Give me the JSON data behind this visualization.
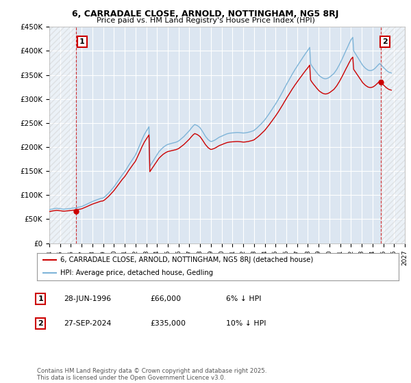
{
  "title1": "6, CARRADALE CLOSE, ARNOLD, NOTTINGHAM, NG5 8RJ",
  "title2": "Price paid vs. HM Land Registry's House Price Index (HPI)",
  "ylim": [
    0,
    450000
  ],
  "yticks": [
    0,
    50000,
    100000,
    150000,
    200000,
    250000,
    300000,
    350000,
    400000,
    450000
  ],
  "ytick_labels": [
    "£0",
    "£50K",
    "£100K",
    "£150K",
    "£200K",
    "£250K",
    "£300K",
    "£350K",
    "£400K",
    "£450K"
  ],
  "hpi_color": "#7eb4d8",
  "price_color": "#cc0000",
  "background_color": "#ffffff",
  "plot_bg_color": "#dce6f1",
  "grid_color": "#ffffff",
  "legend_label_price": "6, CARRADALE CLOSE, ARNOLD, NOTTINGHAM, NG5 8RJ (detached house)",
  "legend_label_hpi": "HPI: Average price, detached house, Gedling",
  "footnote": "Contains HM Land Registry data © Crown copyright and database right 2025.\nThis data is licensed under the Open Government Licence v3.0.",
  "sale1_date_num": 1996.5,
  "sale1_price": 66000,
  "sale1_label": "1",
  "sale2_date_num": 2024.75,
  "sale2_price": 335000,
  "sale2_label": "2",
  "xlim_min": 1994.0,
  "xlim_max": 2027.0,
  "table_rows": [
    {
      "num": "1",
      "date": "28-JUN-1996",
      "price": "£66,000",
      "note": "6% ↓ HPI"
    },
    {
      "num": "2",
      "date": "27-SEP-2024",
      "price": "£335,000",
      "note": "10% ↓ HPI"
    }
  ],
  "hpi_data": [
    [
      1994.0,
      69900
    ],
    [
      1994.08,
      70200
    ],
    [
      1994.17,
      70600
    ],
    [
      1994.25,
      71000
    ],
    [
      1994.33,
      71300
    ],
    [
      1994.42,
      71700
    ],
    [
      1994.5,
      72000
    ],
    [
      1994.58,
      72400
    ],
    [
      1994.67,
      72700
    ],
    [
      1994.75,
      72500
    ],
    [
      1994.83,
      72200
    ],
    [
      1994.92,
      72000
    ],
    [
      1995.0,
      71800
    ],
    [
      1995.08,
      71500
    ],
    [
      1995.17,
      71300
    ],
    [
      1995.25,
      71000
    ],
    [
      1995.33,
      70800
    ],
    [
      1995.42,
      70900
    ],
    [
      1995.5,
      71100
    ],
    [
      1995.58,
      71300
    ],
    [
      1995.67,
      71500
    ],
    [
      1995.75,
      71700
    ],
    [
      1995.83,
      71900
    ],
    [
      1995.92,
      72100
    ],
    [
      1996.0,
      72300
    ],
    [
      1996.08,
      72600
    ],
    [
      1996.17,
      72800
    ],
    [
      1996.25,
      73100
    ],
    [
      1996.33,
      73400
    ],
    [
      1996.42,
      73700
    ],
    [
      1996.5,
      70300
    ],
    [
      1996.58,
      74300
    ],
    [
      1996.67,
      74600
    ],
    [
      1996.75,
      75000
    ],
    [
      1996.83,
      75400
    ],
    [
      1996.92,
      75800
    ],
    [
      1997.0,
      76200
    ],
    [
      1997.08,
      77000
    ],
    [
      1997.17,
      77800
    ],
    [
      1997.25,
      78700
    ],
    [
      1997.33,
      79600
    ],
    [
      1997.42,
      80500
    ],
    [
      1997.5,
      81400
    ],
    [
      1997.58,
      82300
    ],
    [
      1997.67,
      83200
    ],
    [
      1997.75,
      84100
    ],
    [
      1997.83,
      85000
    ],
    [
      1997.92,
      85900
    ],
    [
      1998.0,
      86800
    ],
    [
      1998.08,
      87500
    ],
    [
      1998.17,
      88200
    ],
    [
      1998.25,
      88900
    ],
    [
      1998.33,
      89600
    ],
    [
      1998.42,
      90300
    ],
    [
      1998.5,
      91000
    ],
    [
      1998.58,
      91700
    ],
    [
      1998.67,
      92400
    ],
    [
      1998.75,
      93100
    ],
    [
      1998.83,
      93400
    ],
    [
      1998.92,
      93700
    ],
    [
      1999.0,
      94200
    ],
    [
      1999.08,
      95500
    ],
    [
      1999.17,
      97000
    ],
    [
      1999.25,
      98800
    ],
    [
      1999.33,
      100500
    ],
    [
      1999.42,
      102300
    ],
    [
      1999.5,
      104000
    ],
    [
      1999.58,
      106200
    ],
    [
      1999.67,
      108400
    ],
    [
      1999.75,
      110600
    ],
    [
      1999.83,
      112800
    ],
    [
      1999.92,
      115000
    ],
    [
      2000.0,
      117200
    ],
    [
      2000.08,
      119800
    ],
    [
      2000.17,
      122500
    ],
    [
      2000.25,
      125200
    ],
    [
      2000.33,
      128000
    ],
    [
      2000.42,
      130800
    ],
    [
      2000.5,
      133600
    ],
    [
      2000.58,
      136300
    ],
    [
      2000.67,
      139000
    ],
    [
      2000.75,
      141500
    ],
    [
      2000.83,
      143900
    ],
    [
      2000.92,
      146200
    ],
    [
      2001.0,
      148500
    ],
    [
      2001.08,
      151500
    ],
    [
      2001.17,
      154500
    ],
    [
      2001.25,
      157600
    ],
    [
      2001.33,
      160700
    ],
    [
      2001.42,
      163800
    ],
    [
      2001.5,
      166800
    ],
    [
      2001.58,
      169500
    ],
    [
      2001.67,
      172200
    ],
    [
      2001.75,
      175000
    ],
    [
      2001.83,
      177800
    ],
    [
      2001.92,
      180600
    ],
    [
      2002.0,
      183400
    ],
    [
      2002.08,
      187500
    ],
    [
      2002.17,
      191800
    ],
    [
      2002.25,
      196200
    ],
    [
      2002.33,
      200700
    ],
    [
      2002.42,
      205300
    ],
    [
      2002.5,
      210000
    ],
    [
      2002.58,
      214500
    ],
    [
      2002.67,
      218800
    ],
    [
      2002.75,
      222800
    ],
    [
      2002.83,
      226500
    ],
    [
      2002.92,
      229900
    ],
    [
      2003.0,
      233200
    ],
    [
      2003.08,
      236200
    ],
    [
      2003.17,
      239200
    ],
    [
      2003.25,
      242200
    ],
    [
      2003.33,
      160000
    ],
    [
      2003.42,
      163000
    ],
    [
      2003.5,
      166000
    ],
    [
      2003.58,
      169000
    ],
    [
      2003.67,
      172000
    ],
    [
      2003.75,
      175000
    ],
    [
      2003.83,
      178000
    ],
    [
      2003.92,
      181000
    ],
    [
      2004.0,
      184000
    ],
    [
      2004.08,
      187000
    ],
    [
      2004.17,
      190000
    ],
    [
      2004.25,
      192000
    ],
    [
      2004.33,
      194000
    ],
    [
      2004.42,
      196000
    ],
    [
      2004.5,
      198000
    ],
    [
      2004.58,
      199500
    ],
    [
      2004.67,
      201000
    ],
    [
      2004.75,
      202500
    ],
    [
      2004.83,
      203500
    ],
    [
      2004.92,
      204500
    ],
    [
      2005.0,
      205500
    ],
    [
      2005.08,
      206000
    ],
    [
      2005.17,
      206500
    ],
    [
      2005.25,
      207000
    ],
    [
      2005.33,
      207500
    ],
    [
      2005.42,
      208000
    ],
    [
      2005.5,
      208500
    ],
    [
      2005.58,
      209000
    ],
    [
      2005.67,
      209500
    ],
    [
      2005.75,
      210000
    ],
    [
      2005.83,
      210800
    ],
    [
      2005.92,
      211600
    ],
    [
      2006.0,
      212500
    ],
    [
      2006.08,
      214000
    ],
    [
      2006.17,
      215500
    ],
    [
      2006.25,
      217100
    ],
    [
      2006.33,
      218700
    ],
    [
      2006.42,
      220300
    ],
    [
      2006.5,
      222000
    ],
    [
      2006.58,
      224000
    ],
    [
      2006.67,
      226000
    ],
    [
      2006.75,
      228000
    ],
    [
      2006.83,
      230000
    ],
    [
      2006.92,
      232000
    ],
    [
      2007.0,
      234000
    ],
    [
      2007.08,
      236500
    ],
    [
      2007.17,
      239000
    ],
    [
      2007.25,
      241200
    ],
    [
      2007.33,
      243400
    ],
    [
      2007.42,
      245100
    ],
    [
      2007.5,
      246800
    ],
    [
      2007.58,
      246000
    ],
    [
      2007.67,
      245200
    ],
    [
      2007.75,
      244400
    ],
    [
      2007.83,
      243000
    ],
    [
      2007.92,
      241500
    ],
    [
      2008.0,
      239800
    ],
    [
      2008.08,
      237000
    ],
    [
      2008.17,
      234200
    ],
    [
      2008.25,
      231300
    ],
    [
      2008.33,
      228300
    ],
    [
      2008.42,
      225200
    ],
    [
      2008.5,
      222000
    ],
    [
      2008.58,
      219800
    ],
    [
      2008.67,
      217500
    ],
    [
      2008.75,
      215200
    ],
    [
      2008.83,
      213800
    ],
    [
      2008.92,
      212400
    ],
    [
      2009.0,
      211500
    ],
    [
      2009.08,
      211800
    ],
    [
      2009.17,
      212500
    ],
    [
      2009.25,
      213300
    ],
    [
      2009.33,
      214100
    ],
    [
      2009.42,
      215200
    ],
    [
      2009.5,
      216400
    ],
    [
      2009.58,
      217600
    ],
    [
      2009.67,
      218800
    ],
    [
      2009.75,
      220100
    ],
    [
      2009.83,
      221000
    ],
    [
      2009.92,
      221800
    ],
    [
      2010.0,
      222600
    ],
    [
      2010.08,
      223500
    ],
    [
      2010.17,
      224400
    ],
    [
      2010.25,
      225200
    ],
    [
      2010.33,
      226100
    ],
    [
      2010.42,
      226800
    ],
    [
      2010.5,
      227500
    ],
    [
      2010.58,
      228000
    ],
    [
      2010.67,
      228400
    ],
    [
      2010.75,
      228800
    ],
    [
      2010.83,
      229000
    ],
    [
      2010.92,
      229200
    ],
    [
      2011.0,
      229400
    ],
    [
      2011.08,
      229600
    ],
    [
      2011.17,
      229800
    ],
    [
      2011.25,
      230000
    ],
    [
      2011.33,
      230100
    ],
    [
      2011.42,
      230200
    ],
    [
      2011.5,
      230200
    ],
    [
      2011.58,
      230100
    ],
    [
      2011.67,
      230000
    ],
    [
      2011.75,
      229800
    ],
    [
      2011.83,
      229600
    ],
    [
      2011.92,
      229300
    ],
    [
      2012.0,
      229100
    ],
    [
      2012.08,
      229200
    ],
    [
      2012.17,
      229400
    ],
    [
      2012.25,
      229700
    ],
    [
      2012.33,
      230000
    ],
    [
      2012.42,
      230400
    ],
    [
      2012.5,
      230800
    ],
    [
      2012.58,
      231300
    ],
    [
      2012.67,
      231800
    ],
    [
      2012.75,
      232400
    ],
    [
      2012.83,
      233000
    ],
    [
      2012.92,
      233700
    ],
    [
      2013.0,
      234500
    ],
    [
      2013.08,
      236000
    ],
    [
      2013.17,
      237600
    ],
    [
      2013.25,
      239200
    ],
    [
      2013.33,
      240900
    ],
    [
      2013.42,
      242700
    ],
    [
      2013.5,
      244500
    ],
    [
      2013.58,
      246400
    ],
    [
      2013.67,
      248300
    ],
    [
      2013.75,
      250300
    ],
    [
      2013.83,
      252300
    ],
    [
      2013.92,
      254400
    ],
    [
      2014.0,
      256500
    ],
    [
      2014.08,
      259000
    ],
    [
      2014.17,
      261600
    ],
    [
      2014.25,
      264200
    ],
    [
      2014.33,
      266900
    ],
    [
      2014.42,
      269700
    ],
    [
      2014.5,
      272500
    ],
    [
      2014.58,
      275300
    ],
    [
      2014.67,
      278100
    ],
    [
      2014.75,
      281000
    ],
    [
      2014.83,
      283800
    ],
    [
      2014.92,
      286600
    ],
    [
      2015.0,
      289500
    ],
    [
      2015.08,
      292500
    ],
    [
      2015.17,
      295600
    ],
    [
      2015.25,
      298700
    ],
    [
      2015.33,
      301900
    ],
    [
      2015.42,
      305200
    ],
    [
      2015.5,
      308600
    ],
    [
      2015.58,
      312100
    ],
    [
      2015.67,
      315600
    ],
    [
      2015.75,
      319100
    ],
    [
      2015.83,
      322600
    ],
    [
      2015.92,
      326100
    ],
    [
      2016.0,
      329700
    ],
    [
      2016.08,
      333000
    ],
    [
      2016.17,
      336300
    ],
    [
      2016.25,
      339600
    ],
    [
      2016.33,
      343000
    ],
    [
      2016.42,
      346300
    ],
    [
      2016.5,
      349600
    ],
    [
      2016.58,
      352800
    ],
    [
      2016.67,
      356000
    ],
    [
      2016.75,
      359200
    ],
    [
      2016.83,
      362100
    ],
    [
      2016.92,
      365000
    ],
    [
      2017.0,
      368000
    ],
    [
      2017.08,
      370800
    ],
    [
      2017.17,
      373700
    ],
    [
      2017.25,
      376500
    ],
    [
      2017.33,
      379400
    ],
    [
      2017.42,
      382200
    ],
    [
      2017.5,
      385100
    ],
    [
      2017.58,
      387900
    ],
    [
      2017.67,
      390700
    ],
    [
      2017.75,
      393500
    ],
    [
      2017.83,
      396100
    ],
    [
      2017.92,
      398700
    ],
    [
      2018.0,
      401300
    ],
    [
      2018.08,
      404200
    ],
    [
      2018.17,
      407200
    ],
    [
      2018.25,
      373500
    ],
    [
      2018.33,
      370000
    ],
    [
      2018.42,
      367000
    ],
    [
      2018.5,
      364500
    ],
    [
      2018.58,
      362000
    ],
    [
      2018.67,
      359500
    ],
    [
      2018.75,
      357000
    ],
    [
      2018.83,
      354500
    ],
    [
      2018.92,
      352000
    ],
    [
      2019.0,
      350000
    ],
    [
      2019.08,
      348000
    ],
    [
      2019.17,
      346500
    ],
    [
      2019.25,
      345000
    ],
    [
      2019.33,
      344000
    ],
    [
      2019.42,
      343000
    ],
    [
      2019.5,
      342500
    ],
    [
      2019.58,
      342000
    ],
    [
      2019.67,
      342000
    ],
    [
      2019.75,
      342500
    ],
    [
      2019.83,
      343000
    ],
    [
      2019.92,
      344000
    ],
    [
      2020.0,
      345000
    ],
    [
      2020.08,
      346500
    ],
    [
      2020.17,
      348000
    ],
    [
      2020.25,
      349500
    ],
    [
      2020.33,
      351000
    ],
    [
      2020.42,
      353000
    ],
    [
      2020.5,
      355500
    ],
    [
      2020.58,
      358000
    ],
    [
      2020.67,
      361000
    ],
    [
      2020.75,
      364000
    ],
    [
      2020.83,
      367500
    ],
    [
      2020.92,
      371000
    ],
    [
      2021.0,
      374500
    ],
    [
      2021.08,
      378500
    ],
    [
      2021.17,
      382500
    ],
    [
      2021.25,
      386500
    ],
    [
      2021.33,
      390600
    ],
    [
      2021.42,
      394700
    ],
    [
      2021.5,
      398800
    ],
    [
      2021.58,
      402900
    ],
    [
      2021.67,
      407000
    ],
    [
      2021.75,
      411100
    ],
    [
      2021.83,
      415100
    ],
    [
      2021.92,
      419000
    ],
    [
      2022.0,
      423000
    ],
    [
      2022.08,
      425500
    ],
    [
      2022.17,
      428000
    ],
    [
      2022.25,
      400000
    ],
    [
      2022.33,
      397000
    ],
    [
      2022.42,
      394000
    ],
    [
      2022.5,
      391000
    ],
    [
      2022.58,
      388000
    ],
    [
      2022.67,
      385000
    ],
    [
      2022.75,
      382000
    ],
    [
      2022.83,
      379000
    ],
    [
      2022.92,
      376000
    ],
    [
      2023.0,
      373000
    ],
    [
      2023.08,
      370000
    ],
    [
      2023.17,
      368000
    ],
    [
      2023.25,
      366000
    ],
    [
      2023.33,
      364000
    ],
    [
      2023.42,
      362500
    ],
    [
      2023.5,
      361000
    ],
    [
      2023.58,
      360000
    ],
    [
      2023.67,
      359500
    ],
    [
      2023.75,
      359000
    ],
    [
      2023.83,
      359000
    ],
    [
      2023.92,
      359500
    ],
    [
      2024.0,
      360000
    ],
    [
      2024.08,
      361000
    ],
    [
      2024.17,
      362500
    ],
    [
      2024.25,
      364000
    ],
    [
      2024.33,
      366000
    ],
    [
      2024.42,
      368000
    ],
    [
      2024.5,
      370000
    ],
    [
      2024.58,
      372000
    ],
    [
      2024.67,
      373500
    ],
    [
      2024.75,
      372000
    ],
    [
      2024.83,
      370000
    ],
    [
      2024.92,
      368000
    ],
    [
      2025.0,
      366000
    ],
    [
      2025.08,
      364000
    ],
    [
      2025.17,
      362000
    ],
    [
      2025.25,
      360000
    ],
    [
      2025.33,
      358500
    ],
    [
      2025.42,
      357000
    ],
    [
      2025.5,
      356000
    ],
    [
      2025.58,
      355000
    ],
    [
      2025.67,
      354500
    ],
    [
      2025.75,
      354000
    ]
  ]
}
